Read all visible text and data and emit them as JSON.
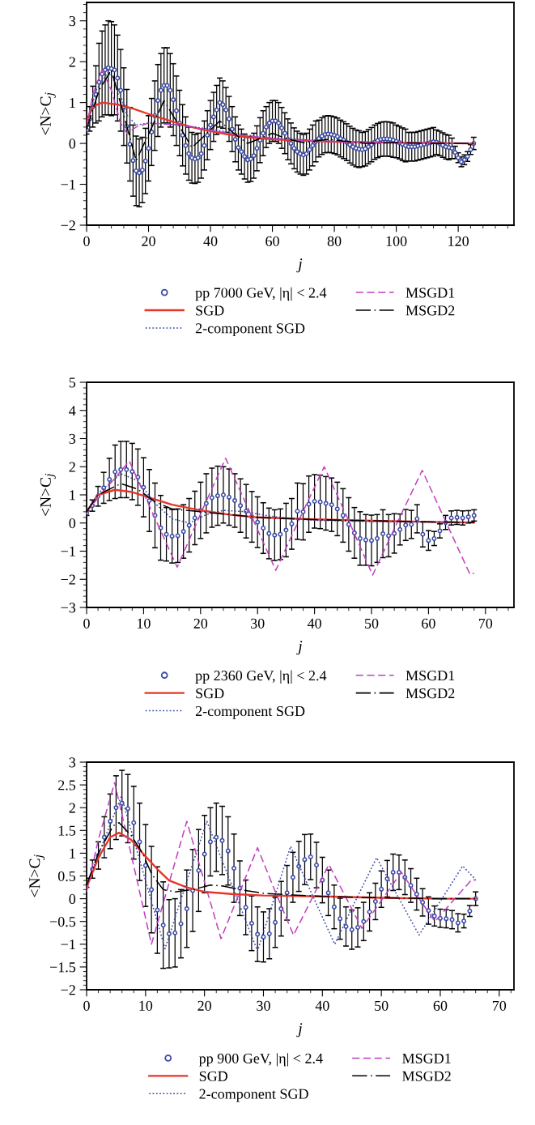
{
  "chart_data": [
    {
      "type": "line",
      "xlabel": "j",
      "ylabel": "<N>C$_{j}$",
      "xlim": [
        0,
        138
      ],
      "xticks": [
        0,
        20,
        40,
        60,
        80,
        100,
        120
      ],
      "ylim": [
        -2,
        3.45
      ],
      "yticks": [
        -2,
        -1,
        0,
        1,
        2,
        3
      ],
      "legend": "bottom",
      "grid": false,
      "series": [
        {
          "name": "pp 7000 GeV, |η| < 2.4",
          "type": "scatter",
          "marker": "circle",
          "color": "#3b4ba8",
          "x": [
            0,
            1,
            2,
            3,
            4,
            5,
            6,
            7,
            8,
            9,
            10,
            11,
            12,
            13,
            14,
            15,
            16,
            17,
            18,
            19,
            20,
            21,
            22,
            23,
            24,
            25,
            26,
            27,
            28,
            29,
            30,
            31,
            32,
            33,
            34,
            35,
            36,
            37,
            38,
            39,
            40,
            41,
            42,
            43,
            44,
            45,
            46,
            47,
            48,
            49,
            50,
            51,
            52,
            53,
            54,
            55,
            56,
            57,
            58,
            59,
            60,
            61,
            62,
            63,
            64,
            65,
            66,
            67,
            68,
            69,
            70,
            71,
            72,
            73,
            74,
            75,
            76,
            77,
            78,
            79,
            80,
            81,
            82,
            83,
            84,
            85,
            86,
            87,
            88,
            89,
            90,
            91,
            92,
            93,
            94,
            95,
            96,
            97,
            98,
            99,
            100,
            101,
            102,
            103,
            104,
            105,
            106,
            107,
            108,
            109,
            110,
            111,
            112,
            113,
            114,
            115,
            116,
            117,
            118,
            119,
            120,
            121,
            122,
            123,
            124,
            125
          ],
          "values": [
            0.33,
            0.6,
            0.9,
            1.2,
            1.5,
            1.7,
            1.8,
            1.85,
            1.83,
            1.8,
            1.6,
            1.3,
            0.9,
            0.42,
            -0.02,
            -0.42,
            -0.67,
            -0.72,
            -0.65,
            -0.43,
            -0.12,
            0.28,
            0.68,
            1.05,
            1.3,
            1.42,
            1.42,
            1.3,
            1.07,
            0.8,
            0.5,
            0.2,
            -0.05,
            -0.25,
            -0.35,
            -0.38,
            -0.35,
            -0.25,
            -0.05,
            0.2,
            0.45,
            0.65,
            0.82,
            1.0,
            0.95,
            0.82,
            0.6,
            0.35,
            0.1,
            -0.1,
            -0.2,
            -0.32,
            -0.4,
            -0.38,
            -0.3,
            -0.12,
            0.08,
            0.25,
            0.4,
            0.5,
            0.55,
            0.55,
            0.5,
            0.38,
            0.25,
            0.1,
            0.0,
            -0.12,
            -0.2,
            -0.25,
            -0.28,
            -0.25,
            -0.15,
            -0.05,
            0.05,
            0.12,
            0.18,
            0.22,
            0.23,
            0.22,
            0.2,
            0.17,
            0.12,
            0.08,
            0.03,
            -0.03,
            -0.08,
            -0.12,
            -0.14,
            -0.15,
            -0.13,
            -0.08,
            -0.03,
            0.03,
            0.07,
            0.1,
            0.11,
            0.11,
            0.1,
            0.08,
            0.05,
            0.02,
            -0.02,
            -0.05,
            -0.08,
            -0.08,
            -0.08,
            -0.06,
            -0.04,
            -0.02,
            0.0,
            0.02,
            0.04,
            0.03,
            0.0,
            -0.04,
            -0.08,
            -0.1,
            -0.12,
            -0.22,
            -0.35,
            -0.45,
            -0.4,
            -0.32,
            -0.15,
            0.0
          ],
          "errors": [
            0.1,
            0.3,
            0.5,
            0.7,
            0.95,
            1.05,
            1.1,
            1.15,
            1.15,
            1.1,
            1.05,
            1.0,
            0.95,
            0.9,
            0.9,
            0.87,
            0.85,
            0.83,
            0.8,
            0.8,
            0.8,
            0.82,
            0.85,
            0.88,
            0.9,
            0.92,
            0.92,
            0.9,
            0.88,
            0.85,
            0.8,
            0.75,
            0.7,
            0.65,
            0.62,
            0.6,
            0.6,
            0.6,
            0.6,
            0.6,
            0.6,
            0.6,
            0.6,
            0.6,
            0.58,
            0.55,
            0.55,
            0.55,
            0.55,
            0.55,
            0.55,
            0.55,
            0.55,
            0.55,
            0.55,
            0.55,
            0.55,
            0.55,
            0.5,
            0.5,
            0.5,
            0.5,
            0.5,
            0.5,
            0.5,
            0.5,
            0.5,
            0.5,
            0.5,
            0.5,
            0.5,
            0.5,
            0.5,
            0.5,
            0.5,
            0.45,
            0.45,
            0.45,
            0.45,
            0.45,
            0.45,
            0.45,
            0.45,
            0.45,
            0.45,
            0.45,
            0.45,
            0.45,
            0.45,
            0.42,
            0.42,
            0.42,
            0.42,
            0.42,
            0.42,
            0.42,
            0.42,
            0.42,
            0.42,
            0.42,
            0.4,
            0.4,
            0.4,
            0.4,
            0.35,
            0.35,
            0.35,
            0.35,
            0.35,
            0.35,
            0.35,
            0.35,
            0.35,
            0.3,
            0.3,
            0.3,
            0.3,
            0.3,
            0.25,
            0.15,
            0.12,
            0.12,
            0.12,
            0.12,
            0.12,
            0.15
          ]
        },
        {
          "name": "SGD",
          "type": "line",
          "line_style": "solid",
          "color": "#e8352a",
          "x": [
            0,
            2,
            5,
            10,
            15,
            20,
            25,
            30,
            35,
            40,
            45,
            50,
            55,
            60,
            70,
            80,
            100,
            125
          ],
          "values": [
            0.55,
            0.9,
            1.0,
            0.95,
            0.85,
            0.72,
            0.6,
            0.48,
            0.38,
            0.3,
            0.23,
            0.17,
            0.13,
            0.1,
            0.07,
            0.04,
            0.02,
            0.0
          ]
        },
        {
          "name": "2-component SGD",
          "type": "line",
          "line_style": "dotted",
          "color": "#3b4ba8",
          "x": [
            0,
            3,
            7,
            10,
            13,
            16,
            20,
            30,
            40,
            50,
            60,
            80,
            100,
            125
          ],
          "values": [
            0.4,
            1.3,
            1.75,
            1.4,
            0.7,
            0.45,
            0.5,
            0.45,
            0.35,
            0.22,
            0.13,
            0.05,
            0.02,
            0.0
          ]
        },
        {
          "name": "MSGD1",
          "type": "line",
          "line_style": "dashed",
          "color": "#c040c0",
          "x": [
            0,
            2,
            5,
            8,
            11,
            13,
            16,
            20,
            30,
            40,
            50,
            60,
            70,
            80,
            100,
            125
          ],
          "values": [
            0.4,
            1.2,
            1.8,
            1.3,
            0.5,
            0.25,
            0.4,
            0.5,
            0.45,
            0.32,
            0.2,
            0.12,
            0.07,
            0.04,
            0.02,
            0.0
          ]
        },
        {
          "name": "MSGD2",
          "type": "line",
          "line_style": "dashdot",
          "color": "#000000",
          "x": [
            0,
            4,
            8,
            12,
            16,
            20.5,
            25,
            29.5,
            34,
            38.5,
            43,
            47.5,
            52,
            56,
            60,
            65,
            70,
            78,
            90,
            100,
            110,
            125
          ],
          "values": [
            0.35,
            1.3,
            1.8,
            0.7,
            -0.42,
            0.3,
            1.05,
            0.48,
            -0.1,
            0.22,
            0.55,
            0.25,
            0.0,
            0.12,
            0.25,
            0.1,
            0.02,
            0.1,
            0.0,
            0.02,
            0.0,
            0.0
          ]
        }
      ]
    },
    {
      "type": "line",
      "xlabel": "j",
      "ylabel": "<N>C$_{j}$",
      "xlim": [
        0,
        75
      ],
      "xticks": [
        0,
        10,
        20,
        30,
        40,
        50,
        60,
        70
      ],
      "ylim": [
        -3,
        5
      ],
      "yticks": [
        -3,
        -2,
        -1,
        0,
        1,
        2,
        3,
        4,
        5
      ],
      "legend": "bottom",
      "grid": false,
      "series": [
        {
          "name": "pp 2360 GeV, |η| < 2.4",
          "type": "scatter",
          "marker": "circle",
          "color": "#3b4ba8",
          "x": [
            0,
            1,
            2,
            3,
            4,
            5,
            6,
            7,
            8,
            9,
            10,
            11,
            12,
            13,
            14,
            15,
            16,
            17,
            18,
            19,
            20,
            21,
            22,
            23,
            24,
            25,
            26,
            27,
            28,
            29,
            30,
            31,
            32,
            33,
            34,
            35,
            36,
            37,
            38,
            39,
            40,
            41,
            42,
            43,
            44,
            45,
            46,
            47,
            48,
            49,
            50,
            51,
            52,
            53,
            54,
            55,
            56,
            57,
            58,
            59,
            60,
            61,
            62,
            63,
            64,
            65,
            66,
            67,
            68
          ],
          "values": [
            0.35,
            0.62,
            0.95,
            1.25,
            1.55,
            1.82,
            1.9,
            1.9,
            1.83,
            1.63,
            1.27,
            0.8,
            0.27,
            -0.17,
            -0.4,
            -0.47,
            -0.45,
            -0.3,
            -0.08,
            0.18,
            0.45,
            0.7,
            0.9,
            0.97,
            1.0,
            0.92,
            0.8,
            0.62,
            0.42,
            0.22,
            0.03,
            -0.18,
            -0.37,
            -0.43,
            -0.4,
            -0.25,
            -0.03,
            0.42,
            0.4,
            0.67,
            0.77,
            0.75,
            0.7,
            0.65,
            0.5,
            0.27,
            -0.05,
            -0.35,
            -0.55,
            -0.6,
            -0.62,
            -0.55,
            -0.38,
            -0.45,
            -0.37,
            -0.23,
            -0.07,
            -0.05,
            0.15,
            -0.4,
            -0.62,
            -0.55,
            -0.28,
            0.02,
            0.18,
            0.2,
            0.18,
            0.22,
            0.27
          ],
          "errors": [
            0.08,
            0.2,
            0.35,
            0.55,
            0.75,
            0.95,
            1.0,
            1.0,
            1.0,
            1.0,
            1.05,
            1.1,
            1.15,
            1.15,
            0.95,
            0.95,
            0.95,
            0.95,
            0.95,
            0.95,
            1.0,
            1.05,
            1.05,
            1.05,
            1.0,
            1.0,
            0.95,
            0.95,
            0.95,
            0.9,
            0.9,
            0.9,
            0.9,
            0.9,
            0.9,
            0.95,
            0.9,
            1.0,
            1.0,
            1.0,
            0.95,
            0.95,
            0.95,
            0.95,
            0.95,
            0.95,
            0.95,
            0.9,
            0.95,
            0.9,
            0.9,
            0.85,
            0.85,
            0.75,
            0.7,
            0.55,
            0.55,
            0.5,
            0.5,
            0.45,
            0.35,
            0.25,
            0.25,
            0.25,
            0.25,
            0.25,
            0.25,
            0.22,
            0.2
          ]
        },
        {
          "name": "SGD",
          "type": "line",
          "line_style": "solid",
          "color": "#e8352a",
          "x": [
            0,
            2,
            5,
            8,
            11,
            15,
            20,
            25,
            30,
            40,
            50,
            60,
            68
          ],
          "values": [
            0.4,
            1.0,
            1.18,
            1.1,
            0.9,
            0.65,
            0.45,
            0.3,
            0.2,
            0.13,
            0.08,
            0.04,
            0.02
          ]
        },
        {
          "name": "2-component SGD",
          "type": "line",
          "line_style": "dotted",
          "color": "#3b4ba8",
          "x": [
            0,
            2,
            6,
            9,
            12,
            15,
            18,
            21,
            24,
            28,
            32,
            36,
            40,
            50,
            60,
            68
          ],
          "values": [
            0.4,
            1.05,
            1.75,
            1.5,
            0.7,
            0.15,
            0.0,
            0.3,
            0.45,
            0.4,
            0.25,
            0.15,
            0.1,
            0.05,
            0.03,
            0.0
          ]
        },
        {
          "name": "MSGD1",
          "type": "line",
          "line_style": "dashed",
          "color": "#c040c0",
          "x": [
            0,
            3.7,
            7.5,
            11.7,
            15.9,
            20.1,
            24.4,
            28.8,
            33.2,
            37.4,
            41.7,
            46,
            50.2,
            54.5,
            58.9,
            63.1,
            67.3,
            68
          ],
          "values": [
            0.4,
            1.3,
            2.2,
            0.3,
            -1.57,
            0.37,
            2.3,
            0.31,
            -1.68,
            0.16,
            2.0,
            0.08,
            -1.85,
            0.01,
            1.87,
            0.02,
            -1.83,
            -1.78
          ]
        },
        {
          "name": "MSGD2",
          "type": "line",
          "line_style": "dashdot",
          "color": "#000000",
          "x": [
            0,
            2,
            6,
            9,
            12,
            15,
            20,
            25,
            30,
            40,
            50,
            60,
            68
          ],
          "values": [
            0.4,
            1.0,
            1.4,
            1.2,
            0.75,
            0.5,
            0.4,
            0.3,
            0.2,
            0.12,
            0.08,
            0.04,
            0.02
          ]
        }
      ]
    },
    {
      "type": "line",
      "xlabel": "j",
      "ylabel": "<N>C$_{j}$",
      "xlim": [
        0,
        72.5
      ],
      "xticks": [
        0,
        10,
        20,
        30,
        40,
        50,
        60,
        70
      ],
      "ylim": [
        -2,
        3
      ],
      "yticks": [
        -2,
        -1.5,
        -1,
        -0.5,
        0,
        0.5,
        1,
        1.5,
        2,
        2.5,
        3
      ],
      "legend": "bottom",
      "grid": false,
      "series": [
        {
          "name": "pp 900 GeV, |η| < 2.4",
          "type": "scatter",
          "marker": "circle",
          "color": "#3b4ba8",
          "x": [
            0,
            1,
            2,
            3,
            4,
            5,
            6,
            7,
            8,
            9,
            10,
            11,
            12,
            13,
            14,
            15,
            16,
            17,
            18,
            19,
            20,
            21,
            22,
            23,
            24,
            25,
            26,
            27,
            28,
            29,
            30,
            31,
            32,
            33,
            34,
            35,
            36,
            37,
            38,
            39,
            40,
            41,
            42,
            43,
            44,
            45,
            46,
            47,
            48,
            49,
            50,
            51,
            52,
            53,
            54,
            55,
            56,
            57,
            58,
            59,
            60,
            61,
            62,
            63,
            64,
            65,
            66
          ],
          "values": [
            0.35,
            0.65,
            0.95,
            1.35,
            1.7,
            2.0,
            2.1,
            1.98,
            1.67,
            1.25,
            0.73,
            0.2,
            -0.25,
            -0.58,
            -0.77,
            -0.75,
            -0.55,
            -0.22,
            0.18,
            0.62,
            0.98,
            1.25,
            1.35,
            1.28,
            1.05,
            0.67,
            0.23,
            -0.19,
            -0.54,
            -0.78,
            -0.84,
            -0.77,
            -0.52,
            -0.22,
            0.13,
            0.47,
            0.71,
            0.86,
            0.92,
            0.74,
            0.41,
            0.13,
            -0.18,
            -0.44,
            -0.61,
            -0.68,
            -0.63,
            -0.5,
            -0.29,
            -0.06,
            0.21,
            0.44,
            0.58,
            0.58,
            0.47,
            0.29,
            0.1,
            -0.08,
            -0.26,
            -0.38,
            -0.43,
            -0.44,
            -0.46,
            -0.53,
            -0.49,
            -0.27,
            0.0
          ],
          "errors": [
            0.1,
            0.2,
            0.3,
            0.45,
            0.6,
            0.7,
            0.72,
            0.75,
            0.8,
            0.85,
            0.9,
            0.95,
            0.95,
            0.95,
            0.75,
            0.75,
            0.75,
            0.85,
            0.9,
            0.9,
            0.85,
            0.75,
            0.75,
            0.75,
            0.75,
            0.75,
            0.6,
            0.6,
            0.6,
            0.6,
            0.55,
            0.55,
            0.55,
            0.6,
            0.6,
            0.55,
            0.55,
            0.55,
            0.5,
            0.5,
            0.5,
            0.5,
            0.48,
            0.45,
            0.43,
            0.43,
            0.43,
            0.42,
            0.42,
            0.4,
            0.4,
            0.4,
            0.4,
            0.38,
            0.38,
            0.37,
            0.35,
            0.3,
            0.3,
            0.22,
            0.2,
            0.2,
            0.2,
            0.2,
            0.15,
            0.12,
            0.15
          ]
        },
        {
          "name": "SGD",
          "type": "line",
          "line_style": "solid",
          "color": "#e8352a",
          "x": [
            0,
            2,
            4,
            5.5,
            7.5,
            9.5,
            12,
            14,
            17,
            20,
            25,
            30,
            40,
            50,
            60,
            66
          ],
          "values": [
            0.25,
            0.9,
            1.35,
            1.45,
            1.3,
            1.0,
            0.65,
            0.4,
            0.25,
            0.15,
            0.1,
            0.07,
            0.05,
            0.02,
            0.0,
            0.0
          ]
        },
        {
          "name": "2-component SGD",
          "type": "line",
          "line_style": "dotted",
          "color": "#3b4ba8",
          "x": [
            0,
            3,
            5.9,
            9.6,
            13.3,
            16.8,
            20.4,
            24.7,
            29,
            31.8,
            34.6,
            38.3,
            42.1,
            45.6,
            49.2,
            52.8,
            56.4,
            60.1,
            63.8,
            66
          ],
          "values": [
            0.3,
            1.3,
            2.25,
            0.58,
            -1.1,
            0.3,
            1.7,
            0.28,
            -1.15,
            0.0,
            1.15,
            0.08,
            -1.0,
            -0.05,
            0.9,
            0.05,
            -0.8,
            -0.04,
            0.72,
            0.42
          ]
        },
        {
          "name": "MSGD1",
          "type": "line",
          "line_style": "dashed",
          "color": "#c040c0",
          "x": [
            0,
            2,
            4.75,
            7.9,
            11,
            14,
            17,
            19.9,
            22.8,
            25.9,
            29,
            32,
            35.1,
            38.1,
            41.1,
            43.9,
            46.7,
            50,
            53.4,
            56.2,
            59.1,
            62.2,
            65.4,
            66
          ],
          "values": [
            0.15,
            1.3,
            2.55,
            0.78,
            -1.0,
            0.35,
            1.7,
            0.41,
            -0.88,
            0.12,
            1.12,
            0.16,
            -0.8,
            -0.03,
            0.75,
            0.05,
            -0.65,
            -0.04,
            0.58,
            0.04,
            -0.5,
            -0.04,
            0.43,
            0.4
          ]
        },
        {
          "name": "MSGD2",
          "type": "line",
          "line_style": "dashdot",
          "color": "#000000",
          "x": [
            0,
            2,
            4.5,
            5.5,
            7.5,
            9.5,
            11,
            13,
            15,
            18,
            21,
            23,
            26,
            30,
            35,
            40,
            50,
            60,
            66
          ],
          "values": [
            0.3,
            1.0,
            1.6,
            1.67,
            1.4,
            1.0,
            0.55,
            0.2,
            0.15,
            0.2,
            0.3,
            0.28,
            0.2,
            0.12,
            0.08,
            0.05,
            0.02,
            0.0,
            0.0
          ]
        }
      ]
    }
  ]
}
